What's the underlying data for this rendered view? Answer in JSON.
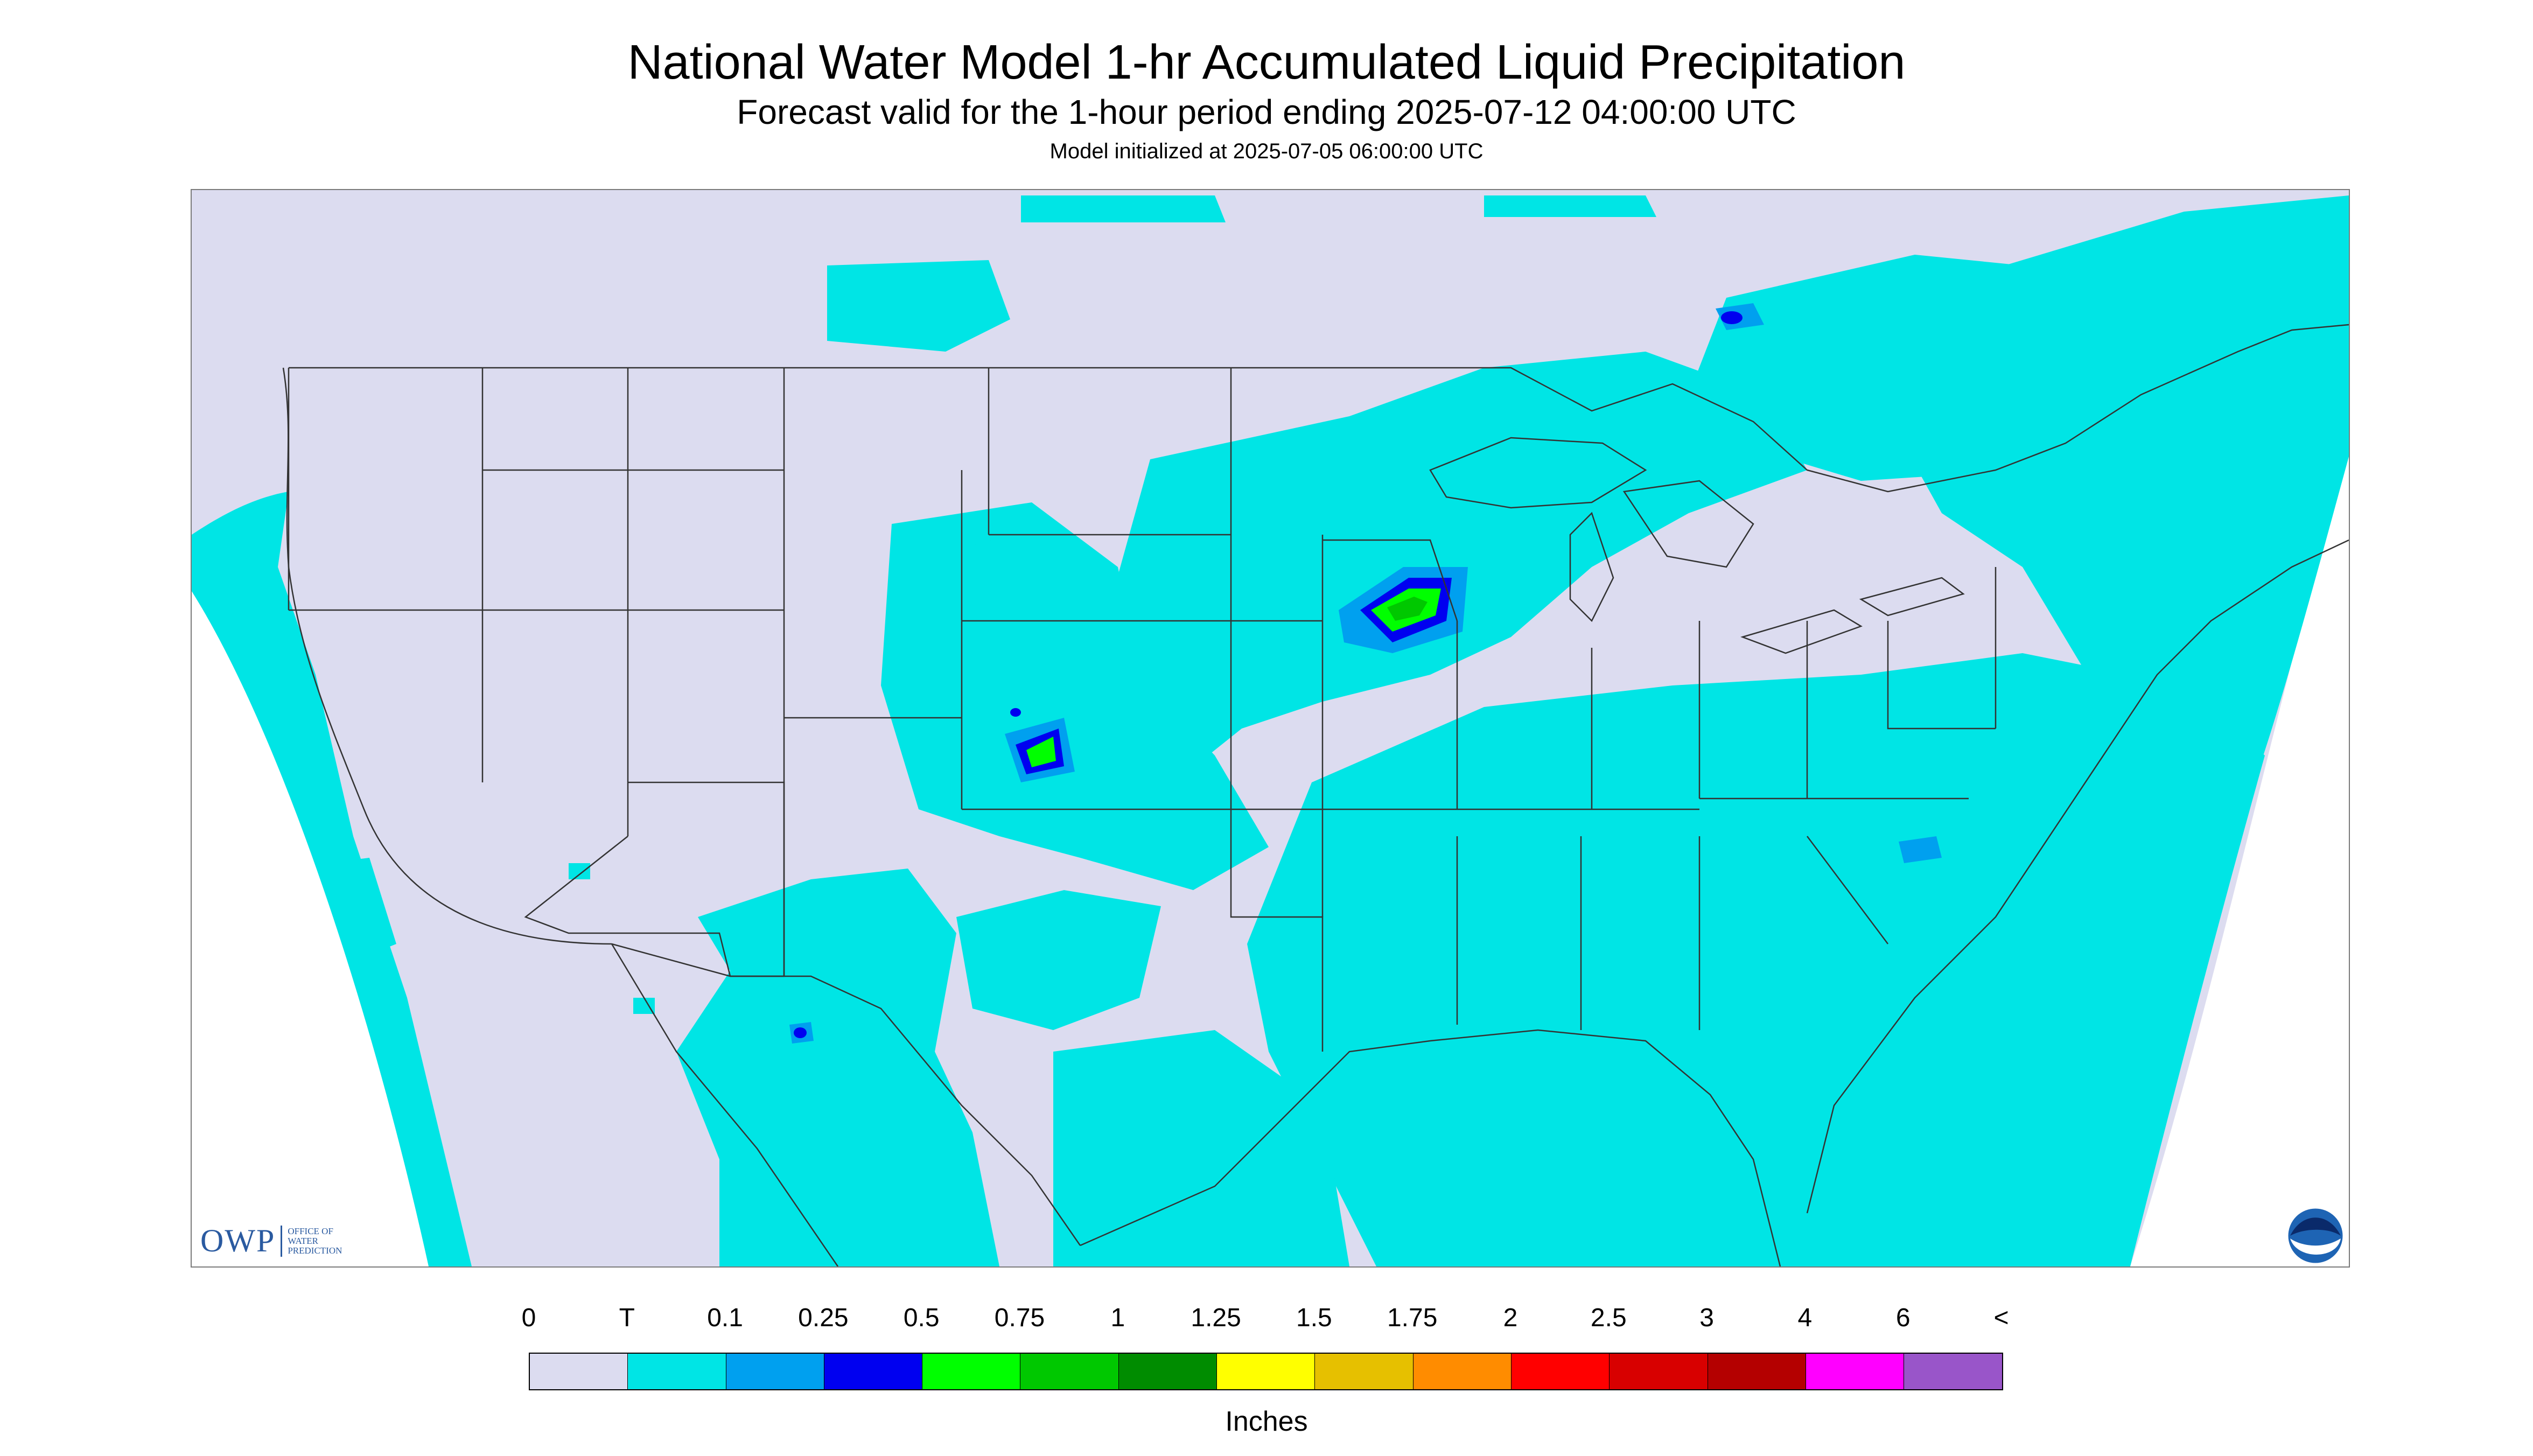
{
  "title": "National Water Model 1-hr Accumulated Liquid Precipitation",
  "subtitle": "Forecast valid for the 1-hour period ending 2025-07-12 04:00:00 UTC",
  "init_line": "Model initialized at 2025-07-05 06:00:00 UTC",
  "logos": {
    "owp_mark": "OWP",
    "owp_text": [
      "OFFICE OF",
      "WATER",
      "PREDICTION"
    ],
    "noaa_icon": "noaa-logo"
  },
  "legend": {
    "tick_labels": [
      "0",
      "T",
      "0.1",
      "0.25",
      "0.5",
      "0.75",
      "1",
      "1.25",
      "1.5",
      "1.75",
      "2",
      "2.5",
      "3",
      "4",
      "6",
      "<"
    ],
    "colors": [
      "#dcdcf0",
      "#00e5e5",
      "#00a0ef",
      "#0000f0",
      "#00ff00",
      "#00c800",
      "#008c00",
      "#ffff00",
      "#e6c000",
      "#ff8c00",
      "#ff0000",
      "#d80000",
      "#b40000",
      "#ff00ff",
      "#9955c9"
    ],
    "units": "Inches"
  },
  "colors": {
    "no_precip": "#dcdcf0",
    "trace": "#00e5e5",
    "light": "#00a0ef",
    "moderate": "#0000f0",
    "heavy": "#00ff00",
    "boundaries": "#333333"
  }
}
